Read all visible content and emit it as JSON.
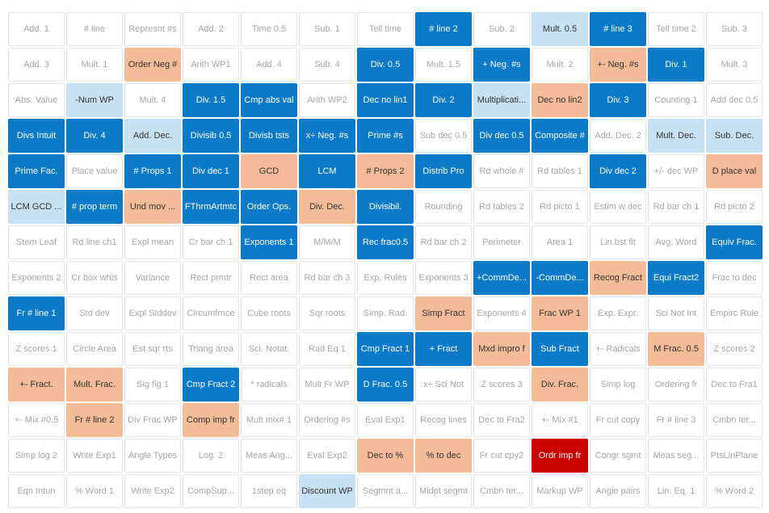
{
  "skill_grid": {
    "rows": [
      [
        {
          "label": "Add. 1",
          "status": "none"
        },
        {
          "label": "# line",
          "status": "none"
        },
        {
          "label": "Represnt #s",
          "status": "none"
        },
        {
          "label": "Add. 2",
          "status": "none"
        },
        {
          "label": "Time 0.5",
          "status": "none"
        },
        {
          "label": "Sub. 1",
          "status": "none"
        },
        {
          "label": "Tell time",
          "status": "none"
        },
        {
          "label": "# line 2",
          "status": "mastered"
        },
        {
          "label": "Sub. 2",
          "status": "none"
        },
        {
          "label": "Mult. 0.5",
          "status": "practiced"
        },
        {
          "label": "# line 3",
          "status": "mastered"
        },
        {
          "label": "Tell time 2",
          "status": "none"
        },
        {
          "label": "Sub. 3",
          "status": "none"
        }
      ],
      [
        {
          "label": "Add. 3",
          "status": "none"
        },
        {
          "label": "Mult. 1",
          "status": "none"
        },
        {
          "label": "Order Neg #",
          "status": "struggling"
        },
        {
          "label": "Arith WP1",
          "status": "none"
        },
        {
          "label": "Add. 4",
          "status": "none"
        },
        {
          "label": "Sub. 4",
          "status": "none"
        },
        {
          "label": "Div. 0.5",
          "status": "mastered"
        },
        {
          "label": "Mult. 1.5",
          "status": "none"
        },
        {
          "label": "+ Neg. #s",
          "status": "mastered"
        },
        {
          "label": "Mult. 2",
          "status": "none"
        },
        {
          "label": "+- Neg. #s",
          "status": "struggling"
        },
        {
          "label": "Div. 1",
          "status": "mastered"
        },
        {
          "label": "Mult. 3",
          "status": "none"
        }
      ],
      [
        {
          "label": "Abs. Value",
          "status": "none"
        },
        {
          "label": "-Num WP",
          "status": "practiced"
        },
        {
          "label": "Mult. 4",
          "status": "none"
        },
        {
          "label": "Div. 1.5",
          "status": "mastered"
        },
        {
          "label": "Cmp abs val",
          "status": "mastered"
        },
        {
          "label": "Arith WP2",
          "status": "none"
        },
        {
          "label": "Dec no lin1",
          "status": "mastered"
        },
        {
          "label": "Div. 2",
          "status": "mastered"
        },
        {
          "label": "Multiplicati...",
          "status": "practiced"
        },
        {
          "label": "Dec no lin2",
          "status": "struggling"
        },
        {
          "label": "Div. 3",
          "status": "mastered"
        },
        {
          "label": "Counting 1",
          "status": "none"
        },
        {
          "label": "Add dec 0.5",
          "status": "none"
        }
      ],
      [
        {
          "label": "Divs Intuit",
          "status": "mastered"
        },
        {
          "label": "Div. 4",
          "status": "mastered"
        },
        {
          "label": "Add. Dec.",
          "status": "practiced"
        },
        {
          "label": "Divisib 0.5",
          "status": "mastered"
        },
        {
          "label": "Divisb tsts",
          "status": "mastered"
        },
        {
          "label": "x÷ Neg. #s",
          "status": "mastered"
        },
        {
          "label": "Prime #s",
          "status": "mastered"
        },
        {
          "label": "Sub dec 0.5",
          "status": "none"
        },
        {
          "label": "Div dec 0.5",
          "status": "mastered"
        },
        {
          "label": "Composite #",
          "status": "mastered"
        },
        {
          "label": "Add. Dec. 2",
          "status": "none"
        },
        {
          "label": "Mult. Dec.",
          "status": "practiced"
        },
        {
          "label": "Sub. Dec.",
          "status": "practiced"
        }
      ],
      [
        {
          "label": "Prime Fac.",
          "status": "mastered"
        },
        {
          "label": "Place value",
          "status": "none"
        },
        {
          "label": "# Props 1",
          "status": "mastered"
        },
        {
          "label": "Div dec 1",
          "status": "mastered"
        },
        {
          "label": "GCD",
          "status": "struggling"
        },
        {
          "label": "LCM",
          "status": "mastered"
        },
        {
          "label": "# Props 2",
          "status": "struggling"
        },
        {
          "label": "Distrib Pro",
          "status": "mastered"
        },
        {
          "label": "Rd whole #",
          "status": "none"
        },
        {
          "label": "Rd tables 1",
          "status": "none"
        },
        {
          "label": "Div dec 2",
          "status": "mastered"
        },
        {
          "label": "+/- dec WP",
          "status": "none"
        },
        {
          "label": "D place val",
          "status": "struggling"
        }
      ],
      [
        {
          "label": "LCM GCD ...",
          "status": "practiced"
        },
        {
          "label": "# prop term",
          "status": "mastered"
        },
        {
          "label": "Und mov ...",
          "status": "struggling"
        },
        {
          "label": "FThrmArtmtc",
          "status": "mastered"
        },
        {
          "label": "Order Ops.",
          "status": "mastered"
        },
        {
          "label": "Div. Dec.",
          "status": "struggling"
        },
        {
          "label": "Divisibil.",
          "status": "mastered"
        },
        {
          "label": "Rounding",
          "status": "none"
        },
        {
          "label": "Rd tables 2",
          "status": "none"
        },
        {
          "label": "Rd picto 1",
          "status": "none"
        },
        {
          "label": "Estim w dec",
          "status": "none"
        },
        {
          "label": "Rd bar ch 1",
          "status": "none"
        },
        {
          "label": "Rd picto 2",
          "status": "none"
        }
      ],
      [
        {
          "label": "Stem Leaf",
          "status": "none"
        },
        {
          "label": "Rd line ch1",
          "status": "none"
        },
        {
          "label": "Expl mean",
          "status": "none"
        },
        {
          "label": "Cr bar ch 1",
          "status": "none"
        },
        {
          "label": "Exponents 1",
          "status": "mastered"
        },
        {
          "label": "M/M/M",
          "status": "none"
        },
        {
          "label": "Rec frac0.5",
          "status": "mastered"
        },
        {
          "label": "Rd bar ch 2",
          "status": "none"
        },
        {
          "label": "Perimeter",
          "status": "none"
        },
        {
          "label": "Area 1",
          "status": "none"
        },
        {
          "label": "Lin bst fit",
          "status": "none"
        },
        {
          "label": "Avg. Word",
          "status": "none"
        },
        {
          "label": "Equiv Frac.",
          "status": "mastered"
        }
      ],
      [
        {
          "label": "Exponents 2",
          "status": "none"
        },
        {
          "label": "Cr box whis",
          "status": "none"
        },
        {
          "label": "Variance",
          "status": "none"
        },
        {
          "label": "Rect prmtr",
          "status": "none"
        },
        {
          "label": "Rect area",
          "status": "none"
        },
        {
          "label": "Rd bar ch 3",
          "status": "none"
        },
        {
          "label": "Exp. Rules",
          "status": "none"
        },
        {
          "label": "Exponents 3",
          "status": "none"
        },
        {
          "label": "+CommDe...",
          "status": "mastered"
        },
        {
          "label": "-CommDe...",
          "status": "mastered"
        },
        {
          "label": "Recog Fract",
          "status": "struggling"
        },
        {
          "label": "Equi Fract2",
          "status": "mastered"
        },
        {
          "label": "Frac to dec",
          "status": "none"
        }
      ],
      [
        {
          "label": "Fr # line 1",
          "status": "mastered"
        },
        {
          "label": "Std dev",
          "status": "none"
        },
        {
          "label": "Expl Stddev",
          "status": "none"
        },
        {
          "label": "Circumfrnce",
          "status": "none"
        },
        {
          "label": "Cube roots",
          "status": "none"
        },
        {
          "label": "Sqr roots",
          "status": "none"
        },
        {
          "label": "Simp. Rad.",
          "status": "none"
        },
        {
          "label": "Simp Fract",
          "status": "struggling"
        },
        {
          "label": "Exponents 4",
          "status": "none"
        },
        {
          "label": "Frac WP 1",
          "status": "struggling"
        },
        {
          "label": "Exp. Expr.",
          "status": "none"
        },
        {
          "label": "Sci Not Int",
          "status": "none"
        },
        {
          "label": "Empirc Rule",
          "status": "none"
        }
      ],
      [
        {
          "label": "Z scores 1",
          "status": "none"
        },
        {
          "label": "Circle Area",
          "status": "none"
        },
        {
          "label": "Est sqr rts",
          "status": "none"
        },
        {
          "label": "Triang area",
          "status": "none"
        },
        {
          "label": "Sci. Notat.",
          "status": "none"
        },
        {
          "label": "Rad Eq 1",
          "status": "none"
        },
        {
          "label": "Cmp Fract 1",
          "status": "mastered"
        },
        {
          "label": "+ Fract",
          "status": "mastered"
        },
        {
          "label": "Mxd impro f",
          "status": "struggling"
        },
        {
          "label": "Sub Fract",
          "status": "mastered"
        },
        {
          "label": "+- Radicals",
          "status": "none"
        },
        {
          "label": "M Frac. 0.5",
          "status": "struggling"
        },
        {
          "label": "Z scores 2",
          "status": "none"
        }
      ],
      [
        {
          "label": "+- Fract.",
          "status": "struggling"
        },
        {
          "label": "Mult. Frac.",
          "status": "struggling"
        },
        {
          "label": "Sig fig 1",
          "status": "none"
        },
        {
          "label": "Cmp Fract 2",
          "status": "mastered"
        },
        {
          "label": "* radicals",
          "status": "none"
        },
        {
          "label": "Mult Fr WP",
          "status": "none"
        },
        {
          "label": "D Frac. 0.5",
          "status": "mastered"
        },
        {
          "label": "x÷ Sci Not",
          "status": "none"
        },
        {
          "label": "Z scores 3",
          "status": "none"
        },
        {
          "label": "Div. Frac.",
          "status": "struggling"
        },
        {
          "label": "Simp log",
          "status": "none"
        },
        {
          "label": "Ordering fr",
          "status": "none"
        },
        {
          "label": "Dec to Fra1",
          "status": "none"
        }
      ],
      [
        {
          "label": "+- Mix #0.5",
          "status": "none"
        },
        {
          "label": "Fr # line 2",
          "status": "struggling"
        },
        {
          "label": "Div Frac WP",
          "status": "none"
        },
        {
          "label": "Comp imp fr",
          "status": "struggling"
        },
        {
          "label": "Mult mix# 1",
          "status": "none"
        },
        {
          "label": "Ordering #s",
          "status": "none"
        },
        {
          "label": "Eval Exp1",
          "status": "none"
        },
        {
          "label": "Recog lines",
          "status": "none"
        },
        {
          "label": "Dec to Fra2",
          "status": "none"
        },
        {
          "label": "+- Mix #1",
          "status": "none"
        },
        {
          "label": "Fr cut copy",
          "status": "none"
        },
        {
          "label": "Fr # line 3",
          "status": "none"
        },
        {
          "label": "Cmbn ter...",
          "status": "none"
        }
      ],
      [
        {
          "label": "Simp log 2",
          "status": "none"
        },
        {
          "label": "Write Exp1",
          "status": "none"
        },
        {
          "label": "Angle Types",
          "status": "none"
        },
        {
          "label": "Log. 2",
          "status": "none"
        },
        {
          "label": "Meas Ang...",
          "status": "none"
        },
        {
          "label": "Eval Exp2",
          "status": "none"
        },
        {
          "label": "Dec to %",
          "status": "struggling"
        },
        {
          "label": "% to dec",
          "status": "struggling"
        },
        {
          "label": "Fr cut cpy2",
          "status": "none"
        },
        {
          "label": "Ordr imp fr",
          "status": "needs_help"
        },
        {
          "label": "Congr sgmt",
          "status": "none"
        },
        {
          "label": "Meas seg...",
          "status": "none"
        },
        {
          "label": "PtsLinPlane",
          "status": "none"
        }
      ],
      [
        {
          "label": "Eqn Intun",
          "status": "none"
        },
        {
          "label": "% Word 1",
          "status": "none"
        },
        {
          "label": "Write Exp2",
          "status": "none"
        },
        {
          "label": "CompSup...",
          "status": "none"
        },
        {
          "label": "1step eq",
          "status": "none"
        },
        {
          "label": "Discount WP",
          "status": "practiced"
        },
        {
          "label": "Segmnt a...",
          "status": "none"
        },
        {
          "label": "Midpt segmt",
          "status": "none"
        },
        {
          "label": "Cmbn ter...",
          "status": "none"
        },
        {
          "label": "Markup WP",
          "status": "none"
        },
        {
          "label": "Angle pairs",
          "status": "none"
        },
        {
          "label": "Lin. Eq. 1",
          "status": "none"
        },
        {
          "label": "% Word 2",
          "status": "none"
        }
      ]
    ]
  },
  "colors": {
    "mastered": "#0b7ac8",
    "practiced": "#c7e1f4",
    "struggling": "#f3bb97",
    "needs_help": "#cc0000",
    "none": "#ffffff"
  }
}
